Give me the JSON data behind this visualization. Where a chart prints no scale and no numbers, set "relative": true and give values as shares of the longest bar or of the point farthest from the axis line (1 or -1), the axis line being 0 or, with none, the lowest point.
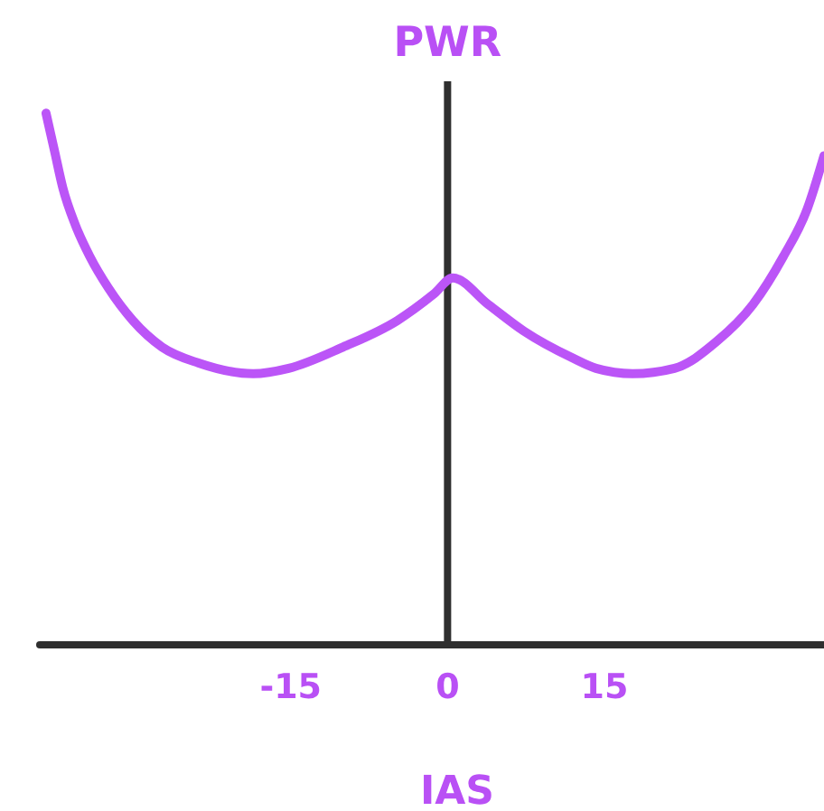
{
  "chart_data": {
    "type": "line",
    "xlabel": "IAS",
    "ylabel": "PWR",
    "relative": true,
    "xlim": [
      -39,
      36
    ],
    "xticks": [
      -15,
      0,
      15
    ],
    "x": [
      -38.4,
      -37.6,
      -36.8,
      -35.6,
      -34.2,
      -32.4,
      -30.1,
      -27.3,
      -23.8,
      -18.6,
      -15.2,
      -10.0,
      -4.8,
      -1.3,
      0.5,
      3.9,
      7.3,
      11.9,
      14.2,
      17.7,
      21.7,
      25.7,
      29.2,
      32.1,
      34.4,
      36.0
    ],
    "series": [
      {
        "color": "#bb55f7",
        "values": [
          1.0,
          0.93,
          0.86,
          0.79,
          0.73,
          0.67,
          0.61,
          0.56,
          0.53,
          0.51,
          0.52,
          0.56,
          0.61,
          0.66,
          0.69,
          0.64,
          0.59,
          0.54,
          0.52,
          0.51,
          0.52,
          0.57,
          0.64,
          0.73,
          0.82,
          0.92
        ]
      }
    ],
    "ref_lines": [
      {
        "axis": "x",
        "value": 0,
        "color": "#2f2f2f"
      }
    ],
    "marker": "none",
    "line_style": "solid"
  }
}
